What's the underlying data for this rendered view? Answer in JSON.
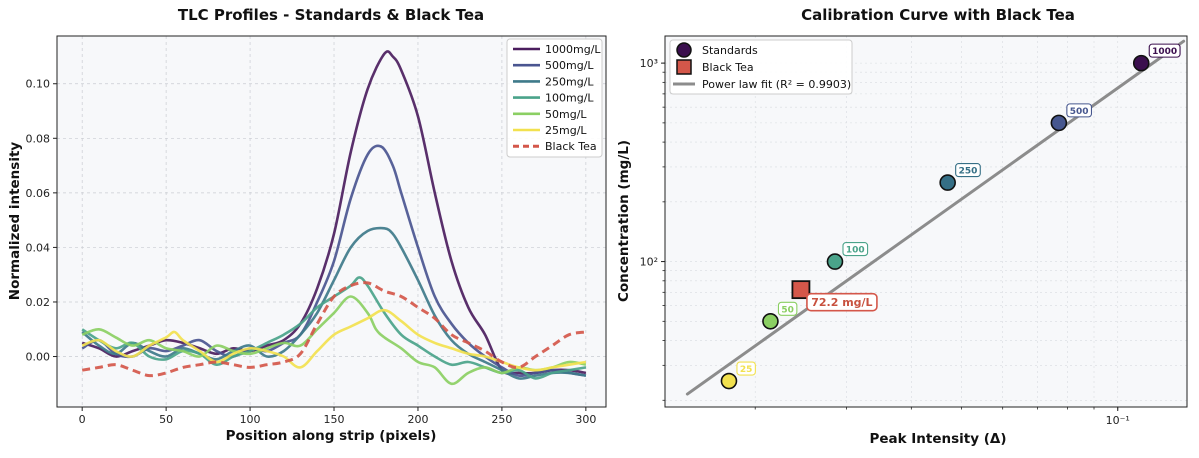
{
  "chart_data": [
    {
      "type": "line",
      "title": "TLC Profiles - Standards & Black Tea",
      "xlabel": "Position along strip (pixels)",
      "ylabel": "Normalized intensity",
      "xlim": [
        -15,
        312
      ],
      "ylim": [
        -0.0185,
        0.1175
      ],
      "xticks": [
        0,
        50,
        100,
        150,
        200,
        250,
        300
      ],
      "yticks": [
        0.0,
        0.02,
        0.04,
        0.06,
        0.08,
        0.1
      ],
      "ytick_labels": [
        "0.00",
        "0.02",
        "0.04",
        "0.06",
        "0.08",
        "0.10"
      ],
      "grid": true,
      "legend_location": "top-right",
      "series": [
        {
          "name": "1000mg/L",
          "color": "#4b1d5e",
          "dashed": false,
          "points": [
            [
              0,
              0.005
            ],
            [
              10,
              0.003
            ],
            [
              20,
              0.0
            ],
            [
              30,
              0.002
            ],
            [
              40,
              0.004
            ],
            [
              50,
              0.006
            ],
            [
              60,
              0.005
            ],
            [
              70,
              0.003
            ],
            [
              80,
              0.001
            ],
            [
              90,
              0.003
            ],
            [
              100,
              0.002
            ],
            [
              110,
              0.004
            ],
            [
              120,
              0.006
            ],
            [
              130,
              0.012
            ],
            [
              140,
              0.025
            ],
            [
              150,
              0.045
            ],
            [
              160,
              0.075
            ],
            [
              170,
              0.098
            ],
            [
              180,
              0.111
            ],
            [
              185,
              0.11
            ],
            [
              190,
              0.105
            ],
            [
              200,
              0.088
            ],
            [
              210,
              0.06
            ],
            [
              220,
              0.035
            ],
            [
              230,
              0.018
            ],
            [
              240,
              0.008
            ],
            [
              250,
              -0.005
            ],
            [
              260,
              -0.006
            ],
            [
              270,
              -0.006
            ],
            [
              280,
              -0.005
            ],
            [
              290,
              -0.005
            ],
            [
              300,
              -0.006
            ]
          ]
        },
        {
          "name": "500mg/L",
          "color": "#4a5590",
          "dashed": false,
          "points": [
            [
              0,
              0.003
            ],
            [
              10,
              0.006
            ],
            [
              20,
              0.001
            ],
            [
              30,
              0.0
            ],
            [
              40,
              0.003
            ],
            [
              50,
              0.002
            ],
            [
              60,
              0.004
            ],
            [
              70,
              0.006
            ],
            [
              80,
              0.002
            ],
            [
              90,
              0.0
            ],
            [
              100,
              0.003
            ],
            [
              110,
              0.002
            ],
            [
              120,
              0.005
            ],
            [
              130,
              0.008
            ],
            [
              140,
              0.02
            ],
            [
              150,
              0.035
            ],
            [
              160,
              0.058
            ],
            [
              170,
              0.074
            ],
            [
              178,
              0.077
            ],
            [
              185,
              0.07
            ],
            [
              190,
              0.06
            ],
            [
              200,
              0.04
            ],
            [
              210,
              0.022
            ],
            [
              220,
              0.012
            ],
            [
              230,
              0.005
            ],
            [
              240,
              0.0
            ],
            [
              250,
              -0.004
            ],
            [
              260,
              -0.007
            ],
            [
              270,
              -0.006
            ],
            [
              280,
              -0.005
            ],
            [
              290,
              -0.006
            ],
            [
              300,
              -0.007
            ]
          ]
        },
        {
          "name": "250mg/L",
          "color": "#3e7a8a",
          "dashed": false,
          "points": [
            [
              0,
              0.009
            ],
            [
              10,
              0.004
            ],
            [
              20,
              0.001
            ],
            [
              30,
              0.005
            ],
            [
              40,
              0.002
            ],
            [
              50,
              0.0
            ],
            [
              60,
              0.003
            ],
            [
              70,
              0.001
            ],
            [
              80,
              -0.001
            ],
            [
              90,
              0.002
            ],
            [
              100,
              0.004
            ],
            [
              110,
              0.0
            ],
            [
              120,
              0.002
            ],
            [
              130,
              0.008
            ],
            [
              140,
              0.016
            ],
            [
              150,
              0.028
            ],
            [
              160,
              0.04
            ],
            [
              170,
              0.046
            ],
            [
              180,
              0.047
            ],
            [
              185,
              0.045
            ],
            [
              190,
              0.04
            ],
            [
              200,
              0.028
            ],
            [
              210,
              0.015
            ],
            [
              220,
              0.006
            ],
            [
              230,
              0.001
            ],
            [
              240,
              -0.002
            ],
            [
              250,
              -0.005
            ],
            [
              260,
              -0.008
            ],
            [
              270,
              -0.007
            ],
            [
              280,
              -0.006
            ],
            [
              290,
              -0.006
            ],
            [
              300,
              -0.007
            ]
          ]
        },
        {
          "name": "100mg/L",
          "color": "#4aa38a",
          "dashed": false,
          "points": [
            [
              0,
              0.01
            ],
            [
              10,
              0.006
            ],
            [
              20,
              0.003
            ],
            [
              30,
              0.005
            ],
            [
              40,
              0.0
            ],
            [
              50,
              -0.001
            ],
            [
              60,
              0.002
            ],
            [
              70,
              0.001
            ],
            [
              80,
              -0.003
            ],
            [
              90,
              0.0
            ],
            [
              100,
              0.002
            ],
            [
              110,
              0.005
            ],
            [
              120,
              0.008
            ],
            [
              130,
              0.012
            ],
            [
              140,
              0.018
            ],
            [
              150,
              0.022
            ],
            [
              160,
              0.026
            ],
            [
              165,
              0.029
            ],
            [
              170,
              0.026
            ],
            [
              180,
              0.016
            ],
            [
              190,
              0.008
            ],
            [
              200,
              0.004
            ],
            [
              210,
              0.0
            ],
            [
              220,
              -0.003
            ],
            [
              230,
              -0.002
            ],
            [
              240,
              -0.004
            ],
            [
              250,
              -0.006
            ],
            [
              260,
              -0.005
            ],
            [
              270,
              -0.008
            ],
            [
              280,
              -0.006
            ],
            [
              290,
              -0.005
            ],
            [
              300,
              -0.004
            ]
          ]
        },
        {
          "name": "50mg/L",
          "color": "#8bcf63",
          "dashed": false,
          "points": [
            [
              0,
              0.008
            ],
            [
              10,
              0.01
            ],
            [
              20,
              0.007
            ],
            [
              30,
              0.004
            ],
            [
              40,
              0.006
            ],
            [
              50,
              0.003
            ],
            [
              60,
              0.002
            ],
            [
              70,
              0.0
            ],
            [
              80,
              0.004
            ],
            [
              90,
              0.002
            ],
            [
              100,
              0.001
            ],
            [
              110,
              0.003
            ],
            [
              120,
              0.005
            ],
            [
              130,
              0.004
            ],
            [
              140,
              0.01
            ],
            [
              150,
              0.016
            ],
            [
              160,
              0.022
            ],
            [
              170,
              0.016
            ],
            [
              175,
              0.01
            ],
            [
              180,
              0.007
            ],
            [
              190,
              0.003
            ],
            [
              200,
              -0.002
            ],
            [
              210,
              -0.004
            ],
            [
              220,
              -0.01
            ],
            [
              230,
              -0.006
            ],
            [
              240,
              -0.004
            ],
            [
              250,
              -0.006
            ],
            [
              260,
              -0.004
            ],
            [
              270,
              -0.005
            ],
            [
              280,
              -0.004
            ],
            [
              290,
              -0.002
            ],
            [
              300,
              -0.003
            ]
          ]
        },
        {
          "name": "25mg/L",
          "color": "#f2e14f",
          "dashed": false,
          "points": [
            [
              0,
              0.004
            ],
            [
              10,
              0.006
            ],
            [
              20,
              0.002
            ],
            [
              30,
              0.0
            ],
            [
              40,
              0.004
            ],
            [
              50,
              0.007
            ],
            [
              55,
              0.009
            ],
            [
              60,
              0.006
            ],
            [
              70,
              0.002
            ],
            [
              80,
              -0.002
            ],
            [
              90,
              0.001
            ],
            [
              100,
              0.003
            ],
            [
              110,
              0.002
            ],
            [
              120,
              0.0
            ],
            [
              130,
              -0.004
            ],
            [
              140,
              0.002
            ],
            [
              150,
              0.008
            ],
            [
              160,
              0.011
            ],
            [
              170,
              0.014
            ],
            [
              180,
              0.017
            ],
            [
              190,
              0.013
            ],
            [
              200,
              0.008
            ],
            [
              210,
              0.005
            ],
            [
              220,
              0.003
            ],
            [
              230,
              0.001
            ],
            [
              240,
              0.0
            ],
            [
              250,
              -0.002
            ],
            [
              260,
              -0.004
            ],
            [
              270,
              -0.005
            ],
            [
              280,
              -0.004
            ],
            [
              290,
              -0.003
            ],
            [
              300,
              -0.002
            ]
          ]
        },
        {
          "name": "Black Tea",
          "color": "#d4574a",
          "dashed": true,
          "points": [
            [
              0,
              -0.005
            ],
            [
              10,
              -0.004
            ],
            [
              20,
              -0.003
            ],
            [
              30,
              -0.005
            ],
            [
              40,
              -0.007
            ],
            [
              50,
              -0.006
            ],
            [
              60,
              -0.004
            ],
            [
              70,
              -0.003
            ],
            [
              80,
              -0.002
            ],
            [
              90,
              -0.003
            ],
            [
              100,
              -0.004
            ],
            [
              110,
              -0.003
            ],
            [
              120,
              -0.002
            ],
            [
              130,
              0.001
            ],
            [
              140,
              0.012
            ],
            [
              150,
              0.022
            ],
            [
              160,
              0.026
            ],
            [
              170,
              0.027
            ],
            [
              180,
              0.024
            ],
            [
              190,
              0.022
            ],
            [
              200,
              0.018
            ],
            [
              210,
              0.014
            ],
            [
              220,
              0.008
            ],
            [
              230,
              0.005
            ],
            [
              240,
              0.002
            ],
            [
              250,
              -0.002
            ],
            [
              260,
              -0.004
            ],
            [
              270,
              0.0
            ],
            [
              280,
              0.004
            ],
            [
              290,
              0.008
            ],
            [
              300,
              0.009
            ]
          ]
        }
      ]
    },
    {
      "type": "scatter",
      "title": "Calibration Curve with Black Tea",
      "xlabel": "Peak Intensity (Δ)",
      "ylabel": "Concentration (mg/L)",
      "xscale": "log",
      "yscale": "log",
      "xlim": [
        0.0134,
        0.136
      ],
      "ylim": [
        18.5,
        1370
      ],
      "xticks": [
        0.1
      ],
      "xtick_labels": [
        "10⁻¹"
      ],
      "yticks": [
        100,
        1000
      ],
      "ytick_labels": [
        "10²",
        "10³"
      ],
      "grid": true,
      "legend_location": "top-left",
      "standards": [
        {
          "label": "1000",
          "x": 0.111,
          "y": 1000,
          "color": "#3b0f4e"
        },
        {
          "label": "500",
          "x": 0.077,
          "y": 500,
          "color": "#47578f"
        },
        {
          "label": "250",
          "x": 0.047,
          "y": 250,
          "color": "#356f86"
        },
        {
          "label": "100",
          "x": 0.0285,
          "y": 100,
          "color": "#4aa38a"
        },
        {
          "label": "50",
          "x": 0.0214,
          "y": 50,
          "color": "#8bcf63"
        },
        {
          "label": "25",
          "x": 0.0178,
          "y": 25,
          "color": "#f2e14f"
        }
      ],
      "black_tea": {
        "x": 0.0245,
        "y": 72.2,
        "label": "72.2 mg/L",
        "color": "#d4574a"
      },
      "fit": {
        "x": [
          0.0148,
          0.134
        ],
        "y": [
          21.5,
          1290
        ],
        "color": "#8c8c8c"
      },
      "legend": [
        "Standards",
        "Black Tea",
        "Power law fit (R² = 0.9903)"
      ]
    }
  ]
}
